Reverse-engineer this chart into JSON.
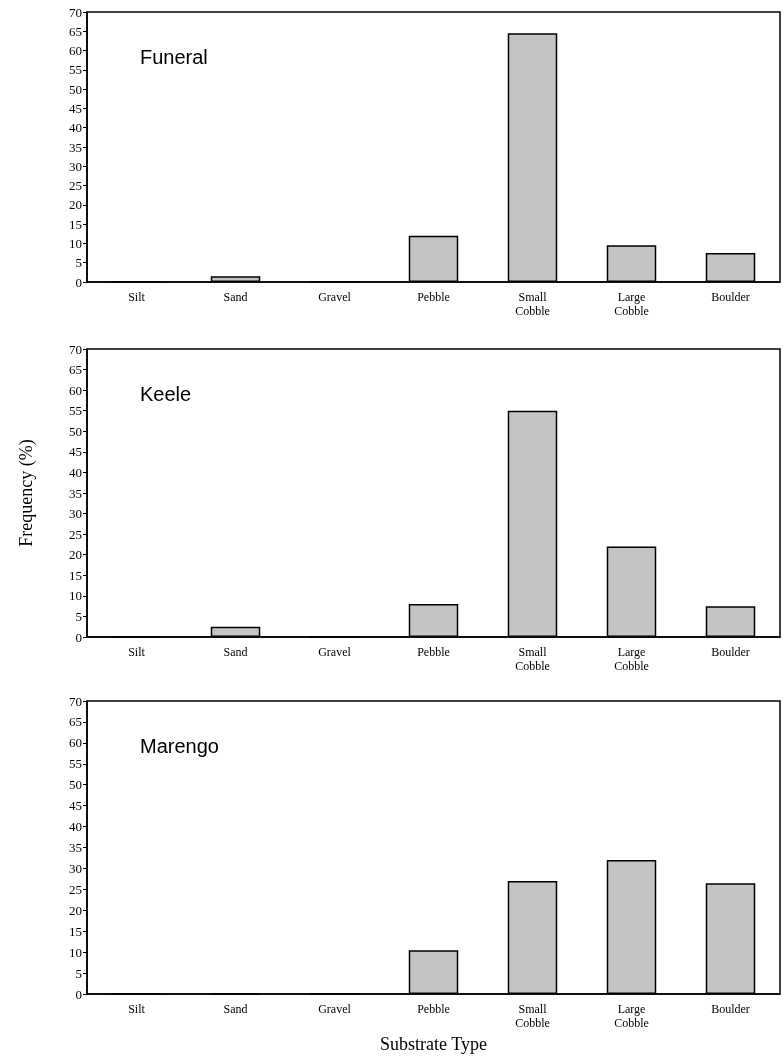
{
  "chart_data": [
    {
      "type": "bar",
      "title": "Funeral",
      "categories": [
        "Silt",
        "Sand",
        "Gravel",
        "Pebble",
        "Small\nCobble",
        "Large\nCobble",
        "Boulder"
      ],
      "values": [
        0,
        1.5,
        0,
        12,
        64.5,
        9.5,
        7.5
      ],
      "color": "#c4c4c4",
      "ylim": [
        0,
        70
      ],
      "yticks": [
        0,
        5,
        10,
        15,
        20,
        25,
        30,
        35,
        40,
        45,
        50,
        55,
        60,
        65,
        70
      ],
      "grid": false
    },
    {
      "type": "bar",
      "title": "Keele",
      "ylabel": "Frequency (%)",
      "categories": [
        "Silt",
        "Sand",
        "Gravel",
        "Pebble",
        "Small\nCobble",
        "Large\nCobble",
        "Boulder"
      ],
      "values": [
        0,
        2.5,
        0,
        8,
        55,
        22,
        7.5
      ],
      "color": "#c4c4c4",
      "ylim": [
        0,
        70
      ],
      "yticks": [
        0,
        5,
        10,
        15,
        20,
        25,
        30,
        35,
        40,
        45,
        50,
        55,
        60,
        65,
        70
      ],
      "grid": false
    },
    {
      "type": "bar",
      "title": "Marengo",
      "xlabel": "Substrate Type",
      "categories": [
        "Silt",
        "Sand",
        "Gravel",
        "Pebble",
        "Small\nCobble",
        "Large\nCobble",
        "Boulder"
      ],
      "values": [
        0,
        0,
        0,
        10.5,
        27,
        32,
        26.5
      ],
      "color": "#c4c4c4",
      "ylim": [
        0,
        70
      ],
      "yticks": [
        0,
        5,
        10,
        15,
        20,
        25,
        30,
        35,
        40,
        45,
        50,
        55,
        60,
        65,
        70
      ],
      "grid": false
    }
  ]
}
